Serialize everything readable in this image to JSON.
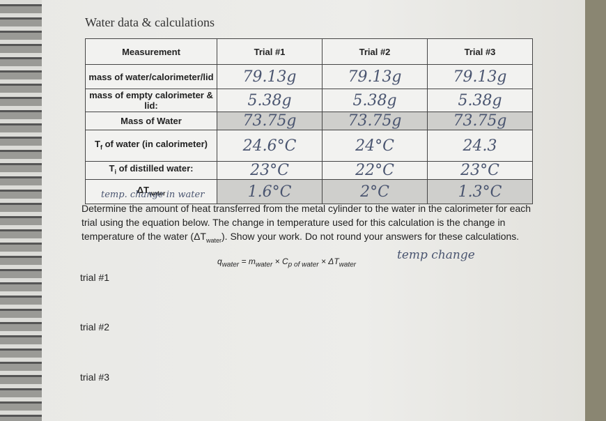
{
  "title": "Water data & calculations",
  "table": {
    "header": [
      "Measurement",
      "Trial #1",
      "Trial #2",
      "Trial #3"
    ],
    "rows": [
      [
        {
          "text": "mass of water/calorimeter/lid"
        },
        "79.13g",
        "79.13g",
        "79.13g"
      ],
      [
        {
          "text": "mass of empty calorimeter & lid:"
        },
        "5.38g",
        "5.38g",
        "5.38g"
      ],
      [
        {
          "text": "Mass of Water"
        },
        "73.75g",
        "73.75g",
        "73.75g"
      ],
      [
        {
          "symbol": "T",
          "sub": "f",
          "text": "of water (in calorimeter)"
        },
        "24.6°C",
        "24°C",
        "24.3"
      ],
      [
        {
          "symbol": "T",
          "sub": "i",
          "text": "of distilled water:"
        },
        "23°C",
        "22°C",
        "23°C"
      ],
      [
        {
          "symbol": "ΔT",
          "sub": "water",
          "text": ""
        },
        "1.6°C",
        "2°C",
        "1.3°C"
      ]
    ]
  },
  "annotation": "temp. change in water",
  "instructions": {
    "before": "Determine the amount of heat transferred from the metal cylinder to the water in the calorimeter for each trial using the equation below. The change in temperature used for this calculation is the change in temperature of the water (ΔT",
    "sub": "water",
    "after": "). Show your work. Do not round your answers for these calculations."
  },
  "equation": {
    "q": "q",
    "q_sub": "water",
    "eq": "=",
    "m": "m",
    "m_sub": "water",
    "times1": "×",
    "c": "C",
    "c_sub": "p of water",
    "times2": "×",
    "dt": "ΔT",
    "dt_sub": "water"
  },
  "equation_note": "temp change",
  "trials": [
    "trial #1",
    "trial #2",
    "trial #3"
  ]
}
